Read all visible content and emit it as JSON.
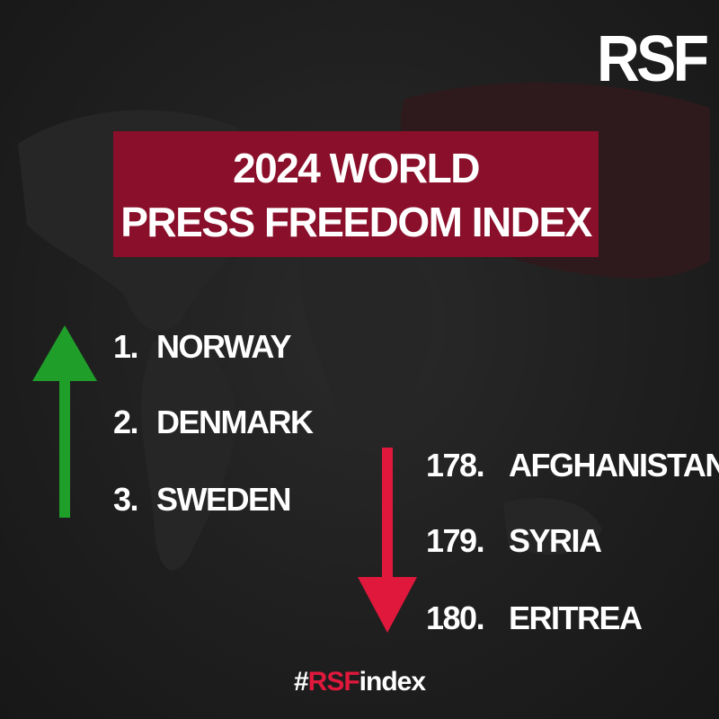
{
  "logo": {
    "text": "RSF"
  },
  "title": {
    "line1": "2024 WORLD",
    "line2": "PRESS FREEDOM INDEX"
  },
  "top_ranks": [
    {
      "rank": "1.",
      "country": "NORWAY"
    },
    {
      "rank": "2.",
      "country": "DENMARK"
    },
    {
      "rank": "3.",
      "country": "SWEDEN"
    }
  ],
  "bottom_ranks": [
    {
      "rank": "178.",
      "country": "AFGHANISTAN"
    },
    {
      "rank": "179.",
      "country": "SYRIA"
    },
    {
      "rank": "180.",
      "country": "ERITREA"
    }
  ],
  "hashtag": {
    "prefix": "#",
    "accent": "RSF",
    "suffix": "index"
  },
  "icons": {
    "up": "arrow-up-icon",
    "down": "arrow-down-icon"
  },
  "colors": {
    "background": "#1c1c1c",
    "title_box": "#8a0f2a",
    "arrow_up": "#1f9e2a",
    "arrow_down": "#e0183c",
    "hashtag_accent": "#e0183c",
    "text": "#ffffff"
  }
}
